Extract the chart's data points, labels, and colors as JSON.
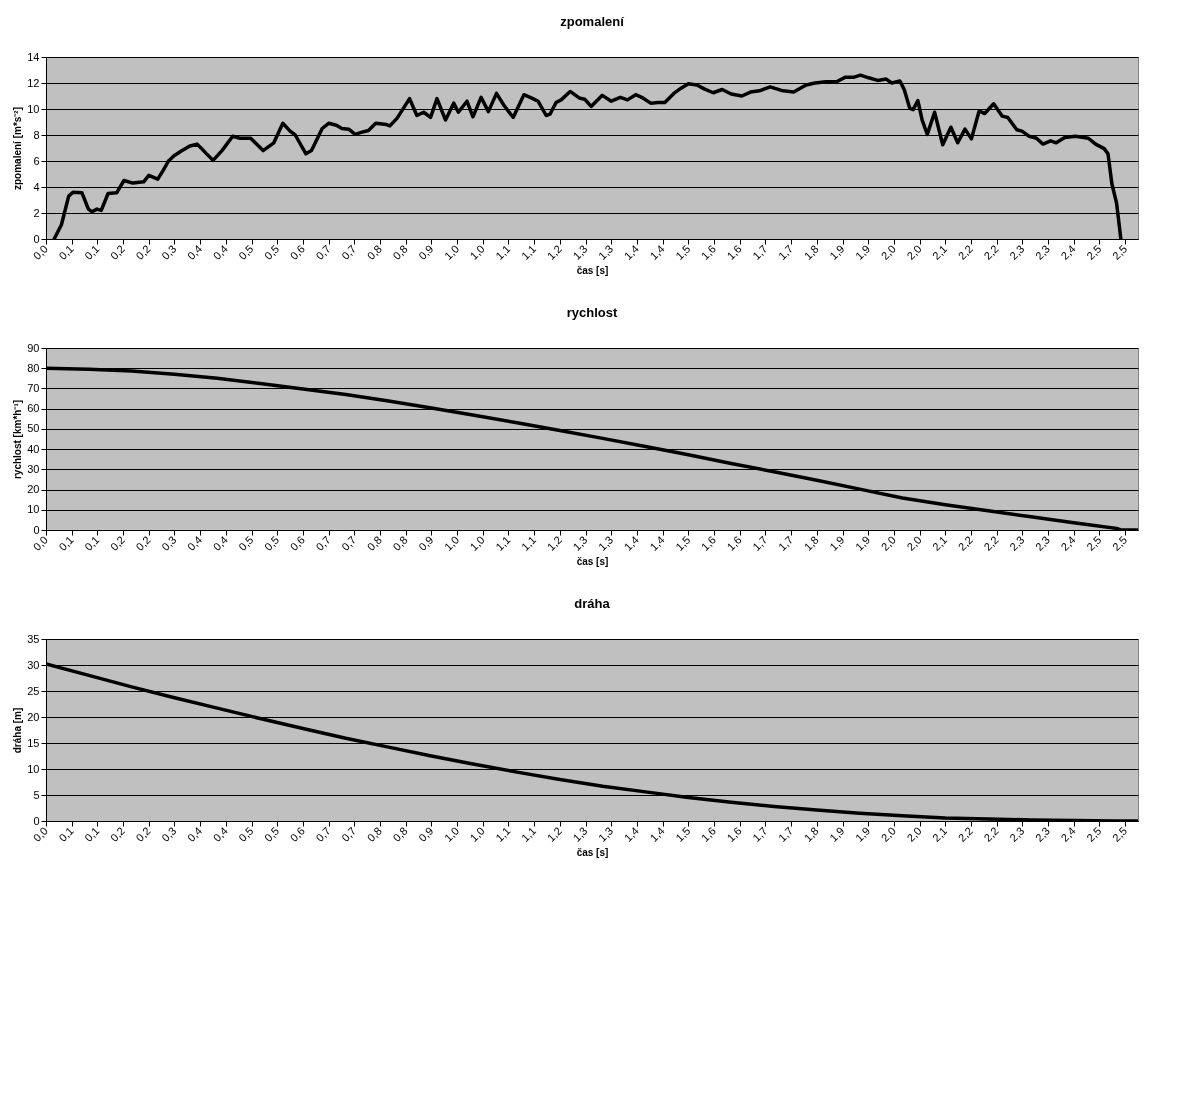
{
  "chart_data": [
    {
      "type": "line",
      "title": "zpomalení",
      "xlabel": "čas [s]",
      "ylabel": "zpomalení [m*s⁻²]",
      "xlim": [
        0,
        2.55
      ],
      "ylim": [
        0,
        14
      ],
      "yticks": [
        0,
        2,
        4,
        6,
        8,
        10,
        12,
        14
      ],
      "grid": "y",
      "line_style": "solid",
      "xticks": [
        {
          "value": 0.0,
          "label": "0,0"
        },
        {
          "value": 0.06,
          "label": "0,1"
        },
        {
          "value": 0.12,
          "label": "0,1"
        },
        {
          "value": 0.18,
          "label": "0,2"
        },
        {
          "value": 0.24,
          "label": "0,2"
        },
        {
          "value": 0.3,
          "label": "0,3"
        },
        {
          "value": 0.36,
          "label": "0,4"
        },
        {
          "value": 0.42,
          "label": "0,4"
        },
        {
          "value": 0.48,
          "label": "0,5"
        },
        {
          "value": 0.54,
          "label": "0,5"
        },
        {
          "value": 0.6,
          "label": "0,6"
        },
        {
          "value": 0.66,
          "label": "0,7"
        },
        {
          "value": 0.72,
          "label": "0,7"
        },
        {
          "value": 0.78,
          "label": "0,8"
        },
        {
          "value": 0.84,
          "label": "0,8"
        },
        {
          "value": 0.9,
          "label": "0,9"
        },
        {
          "value": 0.96,
          "label": "1,0"
        },
        {
          "value": 1.02,
          "label": "1,0"
        },
        {
          "value": 1.08,
          "label": "1,1"
        },
        {
          "value": 1.14,
          "label": "1,1"
        },
        {
          "value": 1.2,
          "label": "1,2"
        },
        {
          "value": 1.26,
          "label": "1,3"
        },
        {
          "value": 1.32,
          "label": "1,3"
        },
        {
          "value": 1.38,
          "label": "1,4"
        },
        {
          "value": 1.44,
          "label": "1,4"
        },
        {
          "value": 1.5,
          "label": "1,5"
        },
        {
          "value": 1.56,
          "label": "1,6"
        },
        {
          "value": 1.62,
          "label": "1,6"
        },
        {
          "value": 1.68,
          "label": "1,7"
        },
        {
          "value": 1.74,
          "label": "1,7"
        },
        {
          "value": 1.8,
          "label": "1,8"
        },
        {
          "value": 1.86,
          "label": "1,9"
        },
        {
          "value": 1.92,
          "label": "1,9"
        },
        {
          "value": 1.98,
          "label": "2,0"
        },
        {
          "value": 2.04,
          "label": "2,0"
        },
        {
          "value": 2.1,
          "label": "2,1"
        },
        {
          "value": 2.16,
          "label": "2,2"
        },
        {
          "value": 2.22,
          "label": "2,2"
        },
        {
          "value": 2.28,
          "label": "2,3"
        },
        {
          "value": 2.34,
          "label": "2,3"
        },
        {
          "value": 2.4,
          "label": "2,4"
        },
        {
          "value": 2.46,
          "label": "2,5"
        },
        {
          "value": 2.52,
          "label": "2,5"
        }
      ],
      "x": [
        0.019,
        0.036,
        0.053,
        0.063,
        0.084,
        0.099,
        0.107,
        0.119,
        0.129,
        0.145,
        0.165,
        0.182,
        0.203,
        0.228,
        0.24,
        0.261,
        0.274,
        0.286,
        0.299,
        0.315,
        0.336,
        0.353,
        0.39,
        0.411,
        0.436,
        0.453,
        0.478,
        0.507,
        0.532,
        0.553,
        0.57,
        0.582,
        0.607,
        0.62,
        0.645,
        0.66,
        0.678,
        0.691,
        0.707,
        0.722,
        0.736,
        0.753,
        0.77,
        0.795,
        0.803,
        0.82,
        0.849,
        0.866,
        0.882,
        0.898,
        0.913,
        0.933,
        0.952,
        0.963,
        0.983,
        0.997,
        1.016,
        1.033,
        1.052,
        1.07,
        1.091,
        1.116,
        1.137,
        1.149,
        1.168,
        1.177,
        1.191,
        1.203,
        1.224,
        1.245,
        1.258,
        1.273,
        1.299,
        1.32,
        1.341,
        1.358,
        1.377,
        1.391,
        1.412,
        1.429,
        1.445,
        1.466,
        1.483,
        1.5,
        1.52,
        1.537,
        1.558,
        1.579,
        1.6,
        1.625,
        1.645,
        1.666,
        1.691,
        1.721,
        1.746,
        1.775,
        1.796,
        1.821,
        1.846,
        1.867,
        1.887,
        1.902,
        1.921,
        1.942,
        1.962,
        1.975,
        1.994,
        2.004,
        2.017,
        2.025,
        2.036,
        2.046,
        2.058,
        2.075,
        2.094,
        2.113,
        2.129,
        2.146,
        2.161,
        2.179,
        2.192,
        2.213,
        2.233,
        2.246,
        2.267,
        2.279,
        2.296,
        2.313,
        2.328,
        2.346,
        2.359,
        2.379,
        2.404,
        2.434,
        2.451,
        2.471,
        2.48,
        2.489,
        2.5,
        2.51
      ],
      "series": [
        {
          "color": "#000000",
          "values": [
            0,
            1.1,
            3.3,
            3.6,
            3.55,
            2.3,
            2.1,
            2.3,
            2.2,
            3.5,
            3.55,
            4.5,
            4.3,
            4.4,
            4.9,
            4.6,
            5.3,
            6.0,
            6.4,
            6.75,
            7.15,
            7.3,
            6.05,
            6.8,
            7.9,
            7.75,
            7.75,
            6.8,
            7.4,
            8.9,
            8.3,
            8.0,
            6.55,
            6.8,
            8.5,
            8.9,
            8.75,
            8.5,
            8.45,
            8.05,
            8.2,
            8.35,
            8.9,
            8.8,
            8.7,
            9.3,
            10.8,
            9.5,
            9.75,
            9.35,
            10.8,
            9.15,
            10.45,
            9.75,
            10.6,
            9.4,
            10.9,
            9.8,
            11.2,
            10.25,
            9.35,
            11.1,
            10.8,
            10.6,
            9.5,
            9.6,
            10.5,
            10.7,
            11.35,
            10.85,
            10.75,
            10.2,
            11.05,
            10.6,
            10.9,
            10.7,
            11.1,
            10.9,
            10.45,
            10.5,
            10.5,
            11.2,
            11.6,
            11.95,
            11.85,
            11.55,
            11.25,
            11.5,
            11.15,
            11.0,
            11.3,
            11.4,
            11.7,
            11.4,
            11.3,
            11.85,
            12.0,
            12.1,
            12.1,
            12.45,
            12.45,
            12.6,
            12.4,
            12.2,
            12.3,
            12.0,
            12.15,
            11.5,
            10.05,
            9.95,
            10.65,
            9.15,
            8.05,
            9.75,
            7.25,
            8.6,
            7.4,
            8.45,
            7.7,
            9.85,
            9.65,
            10.4,
            9.45,
            9.35,
            8.4,
            8.3,
            7.9,
            7.75,
            7.3,
            7.55,
            7.4,
            7.8,
            7.9,
            7.75,
            7.3,
            6.95,
            6.55,
            4.25,
            2.75,
            0
          ]
        }
      ]
    },
    {
      "type": "line",
      "title": "rychlost",
      "xlabel": "čas [s]",
      "ylabel": "rychlost [km*h⁻¹]",
      "xlim": [
        0,
        2.55
      ],
      "ylim": [
        0,
        90
      ],
      "yticks": [
        0,
        10,
        20,
        30,
        40,
        50,
        60,
        70,
        80,
        90
      ],
      "grid": "y",
      "line_style": "solid",
      "xticks": [
        {
          "value": 0.0,
          "label": "0,0"
        },
        {
          "value": 0.06,
          "label": "0,1"
        },
        {
          "value": 0.12,
          "label": "0,1"
        },
        {
          "value": 0.18,
          "label": "0,2"
        },
        {
          "value": 0.24,
          "label": "0,2"
        },
        {
          "value": 0.3,
          "label": "0,3"
        },
        {
          "value": 0.36,
          "label": "0,4"
        },
        {
          "value": 0.42,
          "label": "0,4"
        },
        {
          "value": 0.48,
          "label": "0,5"
        },
        {
          "value": 0.54,
          "label": "0,5"
        },
        {
          "value": 0.6,
          "label": "0,6"
        },
        {
          "value": 0.66,
          "label": "0,7"
        },
        {
          "value": 0.72,
          "label": "0,7"
        },
        {
          "value": 0.78,
          "label": "0,8"
        },
        {
          "value": 0.84,
          "label": "0,8"
        },
        {
          "value": 0.9,
          "label": "0,9"
        },
        {
          "value": 0.96,
          "label": "1,0"
        },
        {
          "value": 1.02,
          "label": "1,0"
        },
        {
          "value": 1.08,
          "label": "1,1"
        },
        {
          "value": 1.14,
          "label": "1,1"
        },
        {
          "value": 1.2,
          "label": "1,2"
        },
        {
          "value": 1.26,
          "label": "1,3"
        },
        {
          "value": 1.32,
          "label": "1,3"
        },
        {
          "value": 1.38,
          "label": "1,4"
        },
        {
          "value": 1.44,
          "label": "1,4"
        },
        {
          "value": 1.5,
          "label": "1,5"
        },
        {
          "value": 1.56,
          "label": "1,6"
        },
        {
          "value": 1.62,
          "label": "1,6"
        },
        {
          "value": 1.68,
          "label": "1,7"
        },
        {
          "value": 1.74,
          "label": "1,7"
        },
        {
          "value": 1.8,
          "label": "1,8"
        },
        {
          "value": 1.86,
          "label": "1,9"
        },
        {
          "value": 1.92,
          "label": "1,9"
        },
        {
          "value": 1.98,
          "label": "2,0"
        },
        {
          "value": 2.04,
          "label": "2,0"
        },
        {
          "value": 2.1,
          "label": "2,1"
        },
        {
          "value": 2.16,
          "label": "2,2"
        },
        {
          "value": 2.22,
          "label": "2,2"
        },
        {
          "value": 2.28,
          "label": "2,3"
        },
        {
          "value": 2.34,
          "label": "2,3"
        },
        {
          "value": 2.4,
          "label": "2,4"
        },
        {
          "value": 2.46,
          "label": "2,5"
        },
        {
          "value": 2.52,
          "label": "2,5"
        }
      ],
      "x": [
        0,
        0.1,
        0.2,
        0.3,
        0.4,
        0.5,
        0.6,
        0.7,
        0.8,
        0.9,
        1.0,
        1.1,
        1.2,
        1.3,
        1.4,
        1.5,
        1.6,
        1.7,
        1.8,
        1.9,
        2.0,
        2.1,
        2.2,
        2.3,
        2.4,
        2.5,
        2.51,
        2.55
      ],
      "series": [
        {
          "color": "#000000",
          "values": [
            80,
            79.5,
            78.6,
            77,
            75,
            72.5,
            69.7,
            67,
            63.8,
            60.3,
            56.7,
            53,
            49.2,
            45.3,
            41.3,
            37.2,
            32.9,
            28.8,
            24.6,
            20.2,
            15.8,
            12.5,
            9.5,
            6.5,
            3.6,
            0.8,
            0,
            0
          ]
        }
      ]
    },
    {
      "type": "line",
      "title": "dráha",
      "xlabel": "čas [s]",
      "ylabel": "dráha [m]",
      "xlim": [
        0,
        2.55
      ],
      "ylim": [
        0,
        35
      ],
      "yticks": [
        0,
        5,
        10,
        15,
        20,
        25,
        30,
        35
      ],
      "grid": "y",
      "line_style": "solid",
      "xticks": [
        {
          "value": 0.0,
          "label": "0,0"
        },
        {
          "value": 0.06,
          "label": "0,1"
        },
        {
          "value": 0.12,
          "label": "0,1"
        },
        {
          "value": 0.18,
          "label": "0,2"
        },
        {
          "value": 0.24,
          "label": "0,2"
        },
        {
          "value": 0.3,
          "label": "0,3"
        },
        {
          "value": 0.36,
          "label": "0,4"
        },
        {
          "value": 0.42,
          "label": "0,4"
        },
        {
          "value": 0.48,
          "label": "0,5"
        },
        {
          "value": 0.54,
          "label": "0,5"
        },
        {
          "value": 0.6,
          "label": "0,6"
        },
        {
          "value": 0.66,
          "label": "0,7"
        },
        {
          "value": 0.72,
          "label": "0,7"
        },
        {
          "value": 0.78,
          "label": "0,8"
        },
        {
          "value": 0.84,
          "label": "0,8"
        },
        {
          "value": 0.9,
          "label": "0,9"
        },
        {
          "value": 0.96,
          "label": "1,0"
        },
        {
          "value": 1.02,
          "label": "1,0"
        },
        {
          "value": 1.08,
          "label": "1,1"
        },
        {
          "value": 1.14,
          "label": "1,1"
        },
        {
          "value": 1.2,
          "label": "1,2"
        },
        {
          "value": 1.26,
          "label": "1,3"
        },
        {
          "value": 1.32,
          "label": "1,3"
        },
        {
          "value": 1.38,
          "label": "1,4"
        },
        {
          "value": 1.44,
          "label": "1,4"
        },
        {
          "value": 1.5,
          "label": "1,5"
        },
        {
          "value": 1.56,
          "label": "1,6"
        },
        {
          "value": 1.62,
          "label": "1,6"
        },
        {
          "value": 1.68,
          "label": "1,7"
        },
        {
          "value": 1.74,
          "label": "1,7"
        },
        {
          "value": 1.8,
          "label": "1,8"
        },
        {
          "value": 1.86,
          "label": "1,9"
        },
        {
          "value": 1.92,
          "label": "1,9"
        },
        {
          "value": 1.98,
          "label": "2,0"
        },
        {
          "value": 2.04,
          "label": "2,0"
        },
        {
          "value": 2.1,
          "label": "2,1"
        },
        {
          "value": 2.16,
          "label": "2,2"
        },
        {
          "value": 2.22,
          "label": "2,2"
        },
        {
          "value": 2.28,
          "label": "2,3"
        },
        {
          "value": 2.34,
          "label": "2,3"
        },
        {
          "value": 2.4,
          "label": "2,4"
        },
        {
          "value": 2.46,
          "label": "2,5"
        },
        {
          "value": 2.52,
          "label": "2,5"
        }
      ],
      "x": [
        0,
        0.1,
        0.2,
        0.3,
        0.4,
        0.5,
        0.6,
        0.7,
        0.8,
        0.9,
        1.0,
        1.1,
        1.2,
        1.3,
        1.4,
        1.5,
        1.6,
        1.7,
        1.8,
        1.9,
        2.0,
        2.1,
        2.2,
        2.3,
        2.4,
        2.5,
        2.55
      ],
      "series": [
        {
          "color": "#000000",
          "values": [
            30.2,
            28.0,
            25.8,
            23.7,
            21.7,
            19.7,
            17.8,
            15.9,
            14.2,
            12.5,
            10.9,
            9.4,
            8.0,
            6.7,
            5.6,
            4.5,
            3.6,
            2.8,
            2.1,
            1.5,
            1.0,
            0.6,
            0.4,
            0.2,
            0.1,
            0,
            0
          ]
        }
      ]
    }
  ]
}
